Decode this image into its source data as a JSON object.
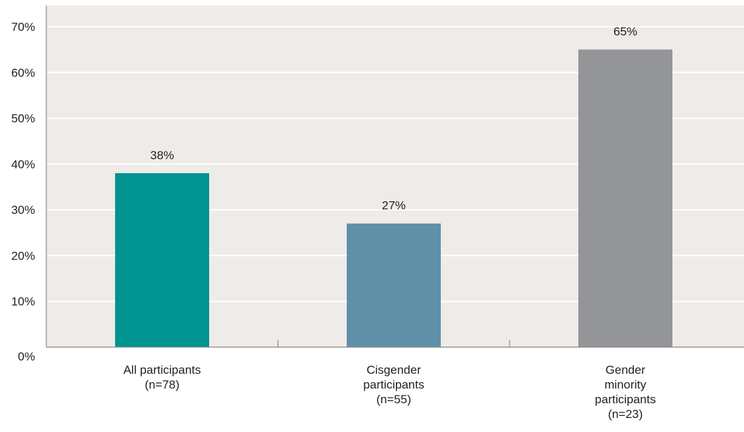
{
  "chart_data": {
    "type": "bar",
    "categories": [
      [
        "All participants",
        "(n=78)"
      ],
      [
        "Cisgender",
        "participants",
        "(n=55)"
      ],
      [
        "Gender",
        "minority",
        "participants",
        "(n=23)"
      ]
    ],
    "values": [
      38,
      27,
      65
    ],
    "value_labels": [
      "38%",
      "27%",
      "65%"
    ],
    "bar_colors": [
      "#009490",
      "#5f90a8",
      "#939598"
    ],
    "ylim": [
      0,
      70
    ],
    "yticks": [
      0,
      10,
      20,
      30,
      40,
      50,
      60,
      70
    ],
    "ytick_labels": [
      "0%",
      "10%",
      "20%",
      "30%",
      "40%",
      "50%",
      "60%",
      "70%"
    ],
    "grid": true,
    "plot_background": "#efebe8",
    "grid_color": "#ffffff",
    "axis_color": "#8a8a8a"
  }
}
